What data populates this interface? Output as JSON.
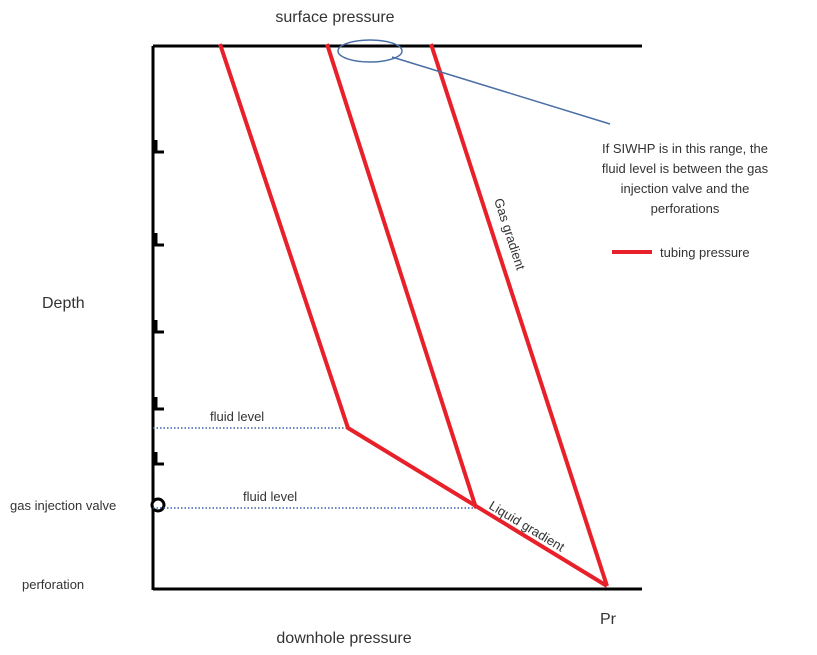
{
  "title_top": "surface pressure",
  "title_bottom": "downhole pressure",
  "axis": {
    "depth_label": "Depth",
    "pr_label": "Pr"
  },
  "left_labels": {
    "gas_injection_valve": "gas injection valve",
    "perforation": "perforation"
  },
  "fluid_levels": [
    {
      "label": "fluid level"
    },
    {
      "label": "fluid level"
    }
  ],
  "line_labels": {
    "gas_gradient": "Gas gradient",
    "liquid_gradient": "Liquid gradient"
  },
  "annotation": {
    "lines": [
      "If SIWHP is in this range, the",
      "fluid level is between the gas",
      "injection valve and the",
      "perforations"
    ]
  },
  "legend": {
    "label": "tubing pressure",
    "color": "#e8202a"
  },
  "colors": {
    "tubing": "#e8202a",
    "annotation": "#4a6fa5",
    "fluid_level": "#3b5ea8",
    "axis": "#000000"
  }
}
